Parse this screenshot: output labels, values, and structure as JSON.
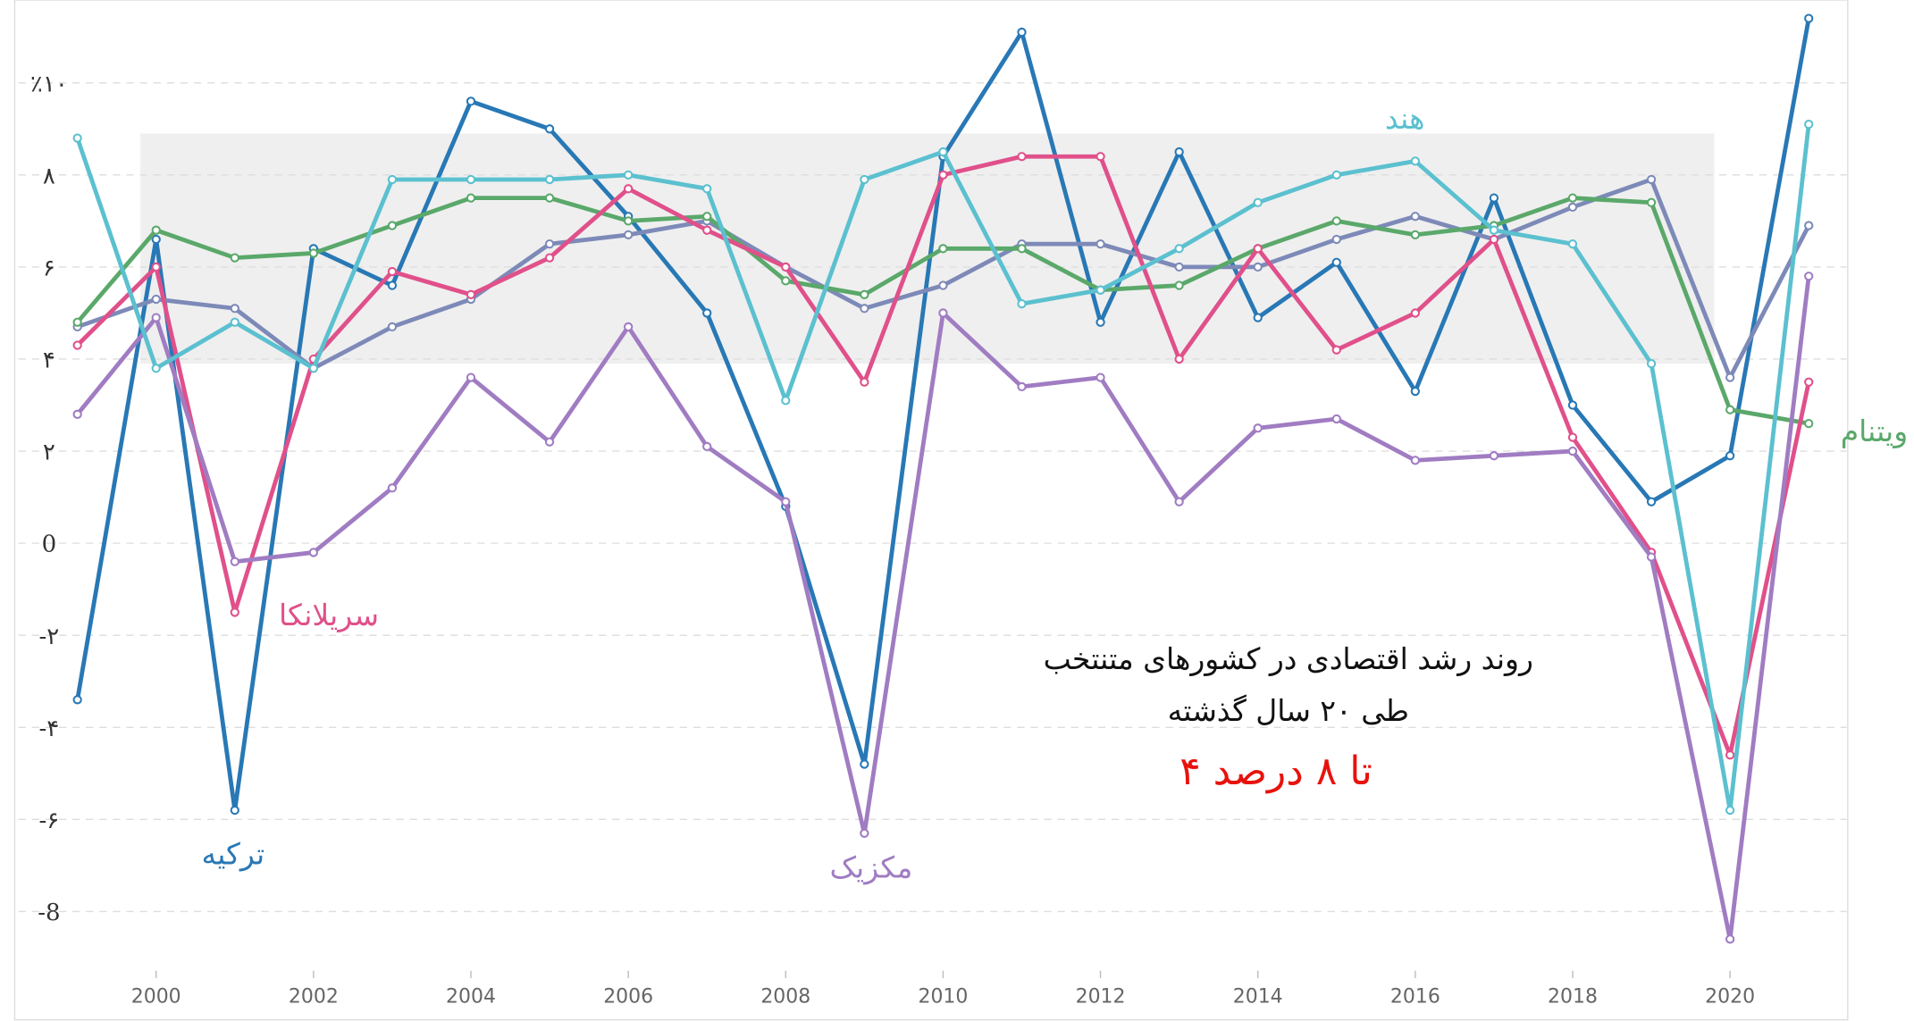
{
  "chart_data": {
    "type": "line",
    "title": "روند رشد اقتصادی در کشورهای متنتخب",
    "subtitle": "طی ۲۰ سال گذشته",
    "annotation": "۴ تا ۸ درصد",
    "band": {
      "x": [
        1999.8,
        2019.8
      ],
      "y": [
        3.9,
        8.9
      ],
      "color": "#efefef"
    },
    "x": [
      1999,
      2000,
      2001,
      2002,
      2003,
      2004,
      2005,
      2006,
      2007,
      2008,
      2009,
      2010,
      2011,
      2012,
      2013,
      2014,
      2015,
      2016,
      2017,
      2018,
      2019,
      2020,
      2021
    ],
    "xlim": [
      1998.25,
      2021.48
    ],
    "xticks": [
      2000,
      2002,
      2004,
      2006,
      2008,
      2010,
      2012,
      2014,
      2016,
      2018,
      2020
    ],
    "ylim": [
      -9.5,
      11.8
    ],
    "yticks": [
      {
        "value": 10,
        "label": "٪۱۰"
      },
      {
        "value": 8,
        "label": "۸"
      },
      {
        "value": 6,
        "label": "۶"
      },
      {
        "value": 4,
        "label": "۴"
      },
      {
        "value": 2,
        "label": "۲"
      },
      0,
      {
        "value": -2,
        "label": "-۲"
      },
      {
        "value": -4,
        "label": "-۴"
      },
      {
        "value": -6,
        "label": "-۶"
      },
      -8
    ],
    "grid": true,
    "series": [
      {
        "name": "ترکیه",
        "color": "#2878b5",
        "values": [
          -3.4,
          6.6,
          -5.8,
          6.4,
          5.6,
          9.6,
          9.0,
          7.1,
          5.0,
          0.8,
          -4.8,
          8.4,
          11.1,
          4.8,
          8.5,
          4.9,
          6.1,
          3.3,
          7.5,
          3.0,
          0.9,
          1.9,
          11.4
        ]
      },
      {
        "color": "#7d8ab8",
        "values": [
          4.7,
          5.3,
          5.1,
          3.8,
          4.7,
          5.3,
          6.5,
          6.7,
          7.0,
          6.0,
          5.1,
          5.6,
          6.5,
          6.5,
          6.0,
          6.0,
          6.6,
          7.1,
          6.6,
          7.3,
          7.9,
          3.6,
          6.9
        ]
      },
      {
        "name": "ویتنام",
        "color": "#5aa86a",
        "values": [
          4.8,
          6.8,
          6.2,
          6.3,
          6.9,
          7.5,
          7.5,
          7.0,
          7.1,
          5.7,
          5.4,
          6.4,
          6.4,
          5.5,
          5.6,
          6.4,
          7.0,
          6.7,
          6.9,
          7.5,
          7.4,
          2.9,
          2.6
        ]
      },
      {
        "name": "سریلانکا",
        "color": "#e0508a",
        "values": [
          4.3,
          6.0,
          -1.5,
          4.0,
          5.9,
          5.4,
          6.2,
          7.7,
          6.8,
          6.0,
          3.5,
          8.0,
          8.4,
          8.4,
          4.0,
          6.4,
          4.2,
          5.0,
          6.6,
          2.3,
          -0.2,
          -4.6,
          3.5
        ]
      },
      {
        "name": "مکزیک",
        "color": "#a07cc2",
        "values": [
          2.8,
          4.9,
          -0.4,
          -0.2,
          1.2,
          3.6,
          2.2,
          4.7,
          2.1,
          0.9,
          -6.3,
          5.0,
          3.4,
          3.6,
          0.9,
          2.5,
          2.7,
          1.8,
          1.9,
          2.0,
          -0.3,
          -8.6,
          5.8
        ]
      },
      {
        "name": "هند",
        "color": "#5bc0cf",
        "values": [
          8.8,
          3.8,
          4.8,
          3.8,
          7.9,
          7.9,
          7.9,
          8.0,
          7.7,
          3.1,
          7.9,
          8.5,
          5.2,
          5.5,
          6.4,
          7.4,
          8.0,
          8.3,
          6.8,
          6.5,
          3.9,
          -5.8,
          9.1
        ]
      }
    ]
  }
}
